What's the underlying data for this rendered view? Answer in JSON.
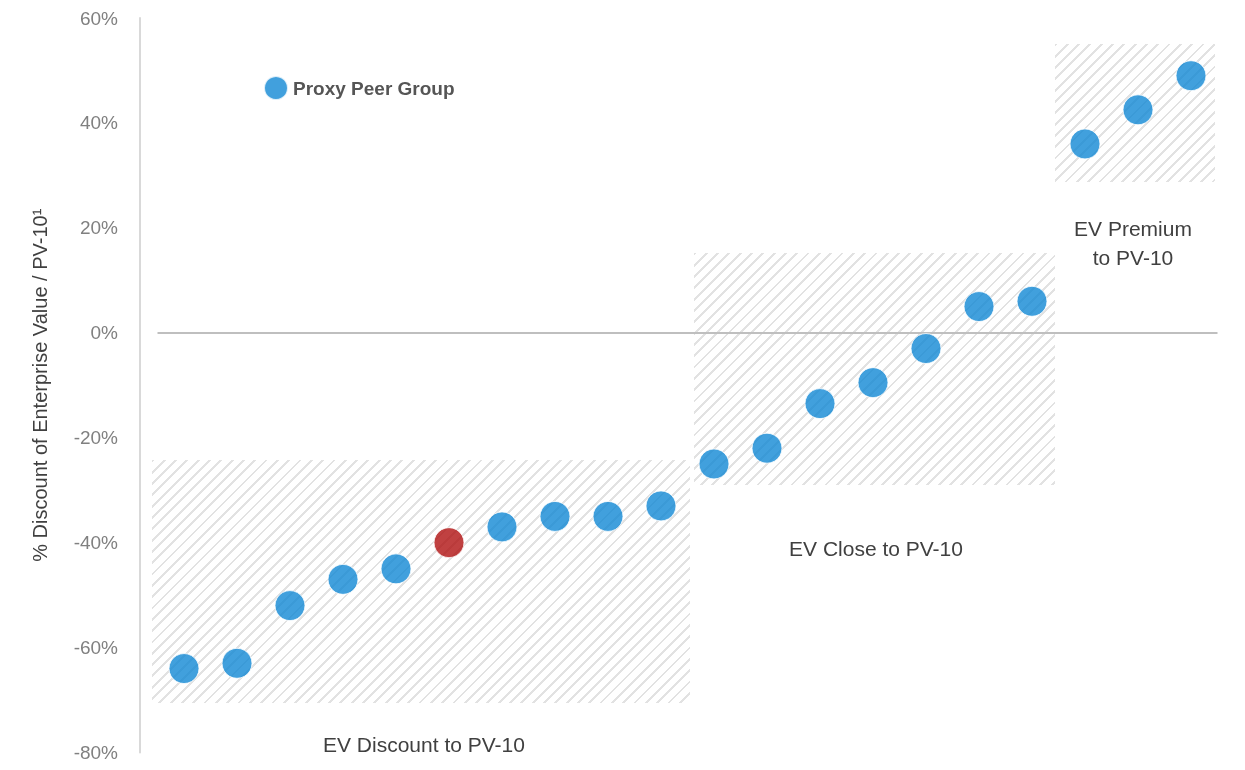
{
  "chart_data": {
    "type": "scatter",
    "ylabel": "% Discount of Enterprise Value / PV-10¹",
    "categories": [
      null,
      null,
      null,
      null,
      null,
      null,
      null,
      null,
      null,
      null,
      null,
      null,
      null,
      null,
      null,
      null,
      null,
      null,
      null,
      null
    ],
    "series": [
      {
        "name": "Proxy Peer Group",
        "color": "#1188d4",
        "values": [
          -64,
          -63,
          -52,
          -47,
          -45,
          null,
          -37,
          -35,
          -35,
          -33,
          -25,
          -22,
          -13.5,
          -9.5,
          -3,
          5,
          6,
          36,
          42.5,
          49
        ]
      },
      {
        "color": "#b01212",
        "values": [
          null,
          null,
          null,
          null,
          null,
          -40,
          null,
          null,
          null,
          null,
          null,
          null,
          null,
          null,
          null,
          null,
          null,
          null,
          null,
          null
        ]
      }
    ],
    "ylim": [
      -80,
      60
    ],
    "yticks": [
      {
        "value": -80,
        "label": "-80%"
      },
      {
        "value": -60,
        "label": "-60%"
      },
      {
        "value": -40,
        "label": "-40%"
      },
      {
        "value": -20,
        "label": "-20%"
      },
      {
        "value": 0,
        "label": "0%"
      },
      {
        "value": 20,
        "label": "20%"
      },
      {
        "value": 40,
        "label": "40%"
      },
      {
        "value": 60,
        "label": "60%"
      }
    ],
    "annotations": [
      "EV Discount to PV-10",
      "EV Close to PV-10",
      "EV Premium\nto PV-10"
    ],
    "ref_lines": [
      {
        "axis": "y",
        "value": 0,
        "color": "#bfbfbf"
      }
    ],
    "grid": false,
    "legend": "top left",
    "marker": "circle",
    "tick_labels": "y"
  }
}
